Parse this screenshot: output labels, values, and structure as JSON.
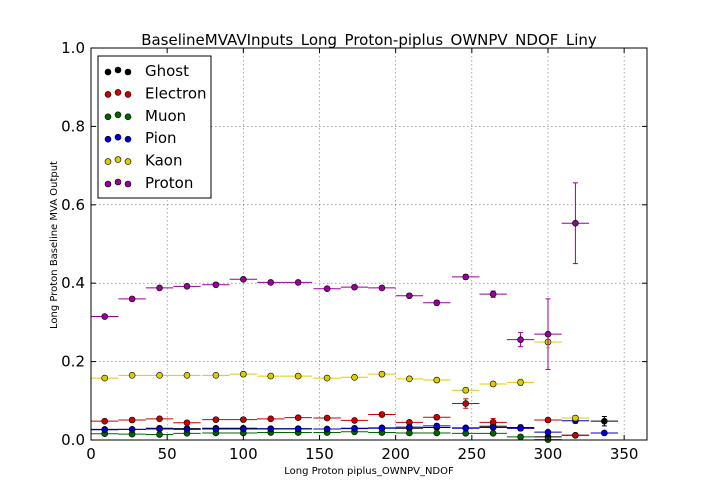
{
  "chart_data": {
    "type": "scatter",
    "title": "BaselineMVAVInputs_Long_Proton-piplus_OWNPV_NDOF_Liny",
    "xlabel": "Long Proton piplus_OWNPV_NDOF",
    "ylabel": "Long Proton Baseline MVA Output",
    "xlim": [
      0,
      365
    ],
    "ylim": [
      0,
      1.0
    ],
    "xticks": [
      "0",
      "50",
      "100",
      "150",
      "200",
      "250",
      "300",
      "350"
    ],
    "xtick_values": [
      0,
      50,
      100,
      150,
      200,
      250,
      300,
      350
    ],
    "yticks": [
      "0.0",
      "0.2",
      "0.4",
      "0.6",
      "0.8",
      "1.0"
    ],
    "ytick_values": [
      0,
      0.2,
      0.4,
      0.6,
      0.8,
      1.0
    ],
    "grid": true,
    "legend_position": "top-left",
    "x_halfwidth": 9,
    "series": [
      {
        "name": "Ghost",
        "color": "#000000",
        "x": [
          9,
          27,
          45,
          63,
          82,
          100,
          118,
          136,
          155,
          173,
          191,
          209,
          227,
          246,
          264,
          282,
          300,
          318,
          337
        ],
        "y": [
          0.027,
          0.027,
          0.03,
          0.029,
          0.03,
          0.03,
          0.029,
          0.029,
          0.028,
          0.03,
          0.031,
          0.03,
          0.032,
          0.031,
          0.035,
          0.032,
          0.008,
          0.012,
          0.048
        ],
        "err": [
          0.002,
          0.002,
          0.002,
          0.002,
          0.002,
          0.002,
          0.002,
          0.002,
          0.002,
          0.002,
          0.002,
          0.002,
          0.003,
          0.003,
          0.005,
          0.006,
          0.004,
          0.004,
          0.012
        ]
      },
      {
        "name": "Electron",
        "color": "#cc0000",
        "x": [
          9,
          27,
          45,
          63,
          82,
          100,
          118,
          136,
          155,
          173,
          191,
          209,
          227,
          246,
          264,
          282,
          300,
          318
        ],
        "y": [
          0.048,
          0.051,
          0.054,
          0.044,
          0.052,
          0.052,
          0.054,
          0.057,
          0.056,
          0.05,
          0.065,
          0.045,
          0.058,
          0.093,
          0.045,
          0.03,
          0.051,
          0.012
        ],
        "err": [
          0.003,
          0.003,
          0.003,
          0.003,
          0.003,
          0.003,
          0.003,
          0.003,
          0.003,
          0.003,
          0.004,
          0.004,
          0.005,
          0.012,
          0.01,
          0.006,
          0.004,
          0.003
        ]
      },
      {
        "name": "Muon",
        "color": "#006600",
        "x": [
          9,
          27,
          45,
          63,
          82,
          100,
          118,
          136,
          155,
          173,
          191,
          209,
          227,
          246,
          264,
          282,
          300
        ],
        "y": [
          0.016,
          0.015,
          0.014,
          0.017,
          0.018,
          0.018,
          0.019,
          0.019,
          0.019,
          0.021,
          0.019,
          0.018,
          0.018,
          0.017,
          0.017,
          0.008,
          0.001
        ],
        "err": [
          0.001,
          0.001,
          0.001,
          0.001,
          0.001,
          0.001,
          0.001,
          0.001,
          0.001,
          0.001,
          0.001,
          0.002,
          0.002,
          0.002,
          0.003,
          0.002,
          0.001
        ]
      },
      {
        "name": "Pion",
        "color": "#0000cc",
        "x": [
          9,
          27,
          45,
          63,
          82,
          100,
          118,
          136,
          155,
          173,
          191,
          209,
          227,
          246,
          264,
          282,
          300,
          318,
          337
        ],
        "y": [
          0.026,
          0.027,
          0.028,
          0.027,
          0.028,
          0.028,
          0.028,
          0.028,
          0.028,
          0.029,
          0.03,
          0.033,
          0.036,
          0.03,
          0.032,
          0.03,
          0.02,
          0.049,
          0.018
        ],
        "err": [
          0.002,
          0.002,
          0.002,
          0.002,
          0.002,
          0.002,
          0.002,
          0.002,
          0.002,
          0.002,
          0.002,
          0.003,
          0.003,
          0.003,
          0.004,
          0.005,
          0.004,
          0.006,
          0.004
        ]
      },
      {
        "name": "Kaon",
        "color": "#ddcc00",
        "x": [
          9,
          27,
          45,
          63,
          82,
          100,
          118,
          136,
          155,
          173,
          191,
          209,
          227,
          246,
          264,
          282,
          300,
          318
        ],
        "y": [
          0.158,
          0.165,
          0.165,
          0.165,
          0.165,
          0.168,
          0.163,
          0.163,
          0.158,
          0.16,
          0.168,
          0.156,
          0.153,
          0.127,
          0.143,
          0.147,
          0.25,
          0.056
        ],
        "err": [
          0.003,
          0.003,
          0.003,
          0.003,
          0.003,
          0.003,
          0.003,
          0.003,
          0.003,
          0.003,
          0.004,
          0.004,
          0.005,
          0.006,
          0.006,
          0.008,
          0.015,
          0.006
        ]
      },
      {
        "name": "Proton",
        "color": "#990099",
        "x": [
          9,
          27,
          45,
          63,
          82,
          100,
          118,
          136,
          155,
          173,
          191,
          209,
          227,
          246,
          264,
          282,
          300,
          318
        ],
        "y": [
          0.315,
          0.36,
          0.388,
          0.392,
          0.396,
          0.41,
          0.402,
          0.402,
          0.386,
          0.39,
          0.388,
          0.368,
          0.35,
          0.416,
          0.372,
          0.256,
          0.27,
          0.553
        ],
        "err": [
          0.003,
          0.003,
          0.003,
          0.003,
          0.003,
          0.004,
          0.004,
          0.004,
          0.004,
          0.004,
          0.004,
          0.005,
          0.006,
          0.006,
          0.008,
          0.018,
          0.09,
          0.103
        ]
      }
    ]
  }
}
